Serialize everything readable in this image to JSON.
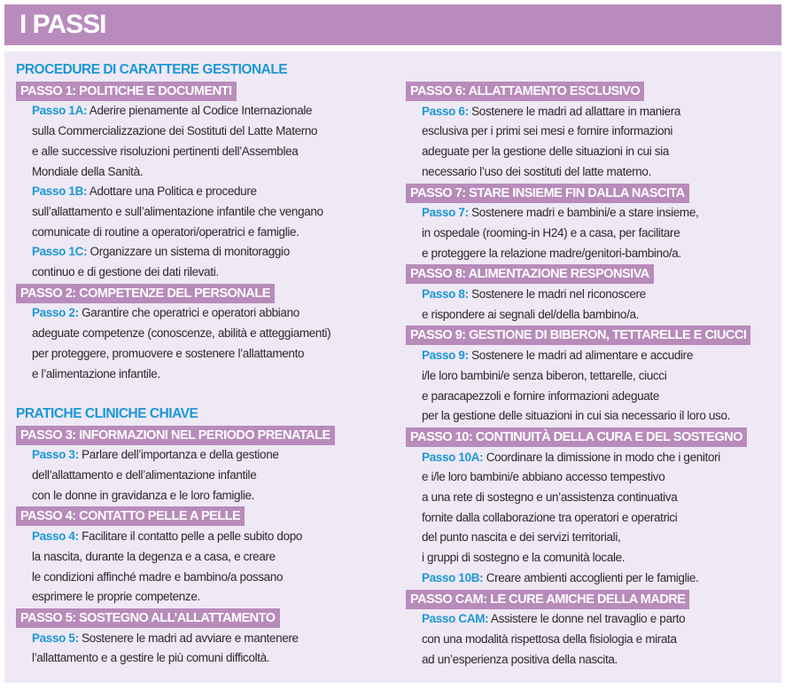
{
  "title": "I PASSI",
  "colors": {
    "header": "#b98bbd",
    "panel": "#efe8f5",
    "step_bar": "#b88bbb",
    "accent_blue": "#1b98d5"
  },
  "columns": [
    {
      "blocks": [
        {
          "type": "section",
          "text": "PROCEDURE DI CARATTERE GESTIONALE"
        },
        {
          "type": "step",
          "text": "PASSO 1: POLITICHE E DOCUMENTI"
        },
        {
          "type": "para",
          "label": "Passo 1A:",
          "lines": [
            "Aderire pienamente al Codice Internazionale",
            "sulla Commercializzazione dei Sostituti del Latte Materno",
            "e alle successive risoluzioni pertinenti dell’Assemblea",
            "Mondiale della Sanità."
          ]
        },
        {
          "type": "para",
          "label": "Passo 1B:",
          "lines": [
            "Adottare una Politica e procedure",
            "sull’allattamento e sull’alimentazione infantile che vengano",
            "comunicate di routine a operatori/operatrici e famiglie."
          ]
        },
        {
          "type": "para",
          "label": "Passo 1C:",
          "lines": [
            "Organizzare un sistema di monitoraggio",
            "continuo e di gestione dei dati rilevati."
          ]
        },
        {
          "type": "step",
          "text": "PASSO 2: COMPETENZE DEL PERSONALE"
        },
        {
          "type": "para",
          "label": "Passo 2:",
          "lines": [
            "Garantire che operatrici e operatori abbiano",
            "adeguate competenze (conoscenze, abilità e atteggiamenti)",
            "per proteggere, promuovere e sostenere l’allattamento",
            "e l’alimentazione infantile."
          ]
        },
        {
          "type": "spacer"
        },
        {
          "type": "section",
          "text": "PRATICHE CLINICHE CHIAVE"
        },
        {
          "type": "step",
          "text": "PASSO 3: INFORMAZIONI NEL PERIODO PRENATALE"
        },
        {
          "type": "para",
          "label": "Passo 3:",
          "lines": [
            "Parlare dell’importanza e della gestione",
            "dell’allattamento e dell’alimentazione infantile",
            "con le donne in gravidanza e le loro famiglie."
          ]
        },
        {
          "type": "step",
          "text": "PASSO 4: CONTATTO PELLE A PELLE"
        },
        {
          "type": "para",
          "label": "Passo 4:",
          "lines": [
            "Facilitare il contatto pelle a pelle subito dopo",
            "la nascita, durante la degenza e a casa, e creare",
            "le condizioni affinché madre e bambino/a possano",
            "esprimere le proprie competenze."
          ]
        },
        {
          "type": "step",
          "text": "PASSO 5: SOSTEGNO ALL’ALLATTAMENTO"
        },
        {
          "type": "para",
          "label": "Passo 5:",
          "lines": [
            "Sostenere le madri ad avviare e mantenere",
            "l’allattamento e a gestire le più comuni difficoltà."
          ]
        }
      ]
    },
    {
      "blocks": [
        {
          "type": "step",
          "text": "PASSO 6: ALLATTAMENTO ESCLUSIVO"
        },
        {
          "type": "para",
          "label": "Passo 6:",
          "lines": [
            "Sostenere le madri ad allattare in maniera",
            "esclusiva per i primi sei mesi e fornire informazioni",
            "adeguate per la gestione delle situazioni in cui sia",
            "necessario l’uso dei sostituti del latte materno."
          ]
        },
        {
          "type": "step",
          "text": "PASSO 7: STARE INSIEME FIN DALLA NASCITA"
        },
        {
          "type": "para",
          "label": "Passo 7:",
          "lines": [
            "Sostenere madri e bambini/e a stare insieme,",
            "in ospedale (rooming-in H24) e a casa, per facilitare",
            "e proteggere la relazione madre/genitori-bambino/a."
          ]
        },
        {
          "type": "step",
          "text": "PASSO 8: ALIMENTAZIONE RESPONSIVA"
        },
        {
          "type": "para",
          "label": "Passo 8:",
          "lines": [
            "Sostenere le madri nel riconoscere",
            "e rispondere ai segnali del/della bambino/a."
          ]
        },
        {
          "type": "step",
          "text": "PASSO 9: GESTIONE DI BIBERON, TETTARELLE E CIUCCI"
        },
        {
          "type": "para",
          "label": "Passo 9:",
          "lines": [
            "Sostenere le madri ad alimentare e accudire",
            "i/le loro bambini/e senza biberon, tettarelle, ciucci",
            "e paracapezzoli e fornire informazioni adeguate",
            "per la gestione delle situazioni in cui sia necessario il loro uso."
          ]
        },
        {
          "type": "step",
          "text": "PASSO 10: CONTINUITÀ DELLA CURA E DEL SOSTEGNO"
        },
        {
          "type": "para",
          "label": "Passo 10A:",
          "lines": [
            "Coordinare la dimissione in modo che i genitori",
            "e i/le loro bambini/e abbiano accesso tempestivo",
            "a una rete di sostegno e un’assistenza continuativa",
            "fornite dalla collaborazione tra operatori e operatrici",
            "del punto nascita e dei servizi territoriali,",
            "i gruppi di sostegno e la comunità locale."
          ]
        },
        {
          "type": "para",
          "label": "Passo 10B:",
          "lines": [
            "Creare ambienti accoglienti per le famiglie."
          ]
        },
        {
          "type": "step",
          "text": "PASSO CAM: LE CURE AMICHE DELLA MADRE"
        },
        {
          "type": "para",
          "label": "Passo CAM:",
          "lines": [
            "Assistere le donne nel travaglio e parto",
            "con una modalità rispettosa della fisiologia e mirata",
            "ad un’esperienza positiva della nascita."
          ]
        }
      ]
    }
  ]
}
